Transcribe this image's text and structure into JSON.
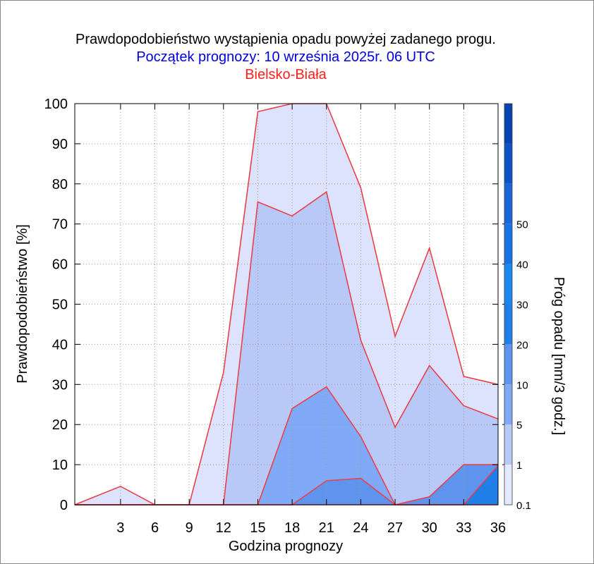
{
  "chart_data": {
    "type": "area",
    "title": "Prawdopodobieństwo wystąpienia opadu powyżej zadanego progu.",
    "subtitle": "Początek prognozy: 10 września 2025r. 06 UTC",
    "location": "Bielsko-Biała",
    "xlabel": "Godzina prognozy",
    "ylabel": "Prawdopodobieństwo [%]",
    "colorbar_label": "Próg opadu [mm/3 godz.]",
    "xlim": [
      -1,
      36
    ],
    "ylim": [
      0,
      100
    ],
    "x_ticks": [
      3,
      6,
      9,
      12,
      15,
      18,
      21,
      24,
      27,
      30,
      33,
      36
    ],
    "y_ticks": [
      0,
      10,
      20,
      30,
      40,
      50,
      60,
      70,
      80,
      90,
      100
    ],
    "grid": true,
    "x": [
      -1,
      3,
      6,
      9,
      12,
      15,
      18,
      21,
      24,
      27,
      30,
      33,
      36
    ],
    "series": [
      {
        "threshold": 0.1,
        "color": "#dde3fc",
        "values": [
          0,
          4.6,
          0,
          0,
          33,
          98,
          100,
          100,
          79,
          42,
          64,
          32,
          30
        ]
      },
      {
        "threshold": 1,
        "color": "#b9c9f7",
        "values": [
          0,
          0,
          0,
          0,
          0,
          75.5,
          72,
          78,
          41,
          19.3,
          34.7,
          24.7,
          21.4
        ]
      },
      {
        "threshold": 5,
        "color": "#80aaf7",
        "values": [
          0,
          0,
          0,
          0,
          0,
          0,
          24,
          29.4,
          17,
          0,
          0,
          0,
          0
        ]
      },
      {
        "threshold": 10,
        "color": "#5e93ee",
        "values": [
          0,
          0,
          0,
          0,
          0,
          0,
          0,
          6,
          6.6,
          0,
          2,
          10,
          10
        ]
      },
      {
        "threshold": 20,
        "color": "#1f7ee7",
        "values": [
          0,
          0,
          0,
          0,
          0,
          0,
          0,
          0,
          0,
          0,
          0,
          0,
          9.8
        ]
      }
    ],
    "colorbar": {
      "tick_labels": [
        "0.1",
        "1",
        "5",
        "10",
        "20",
        "30",
        "40",
        "50"
      ],
      "colors": [
        "#e3e9fe",
        "#b9c9f7",
        "#80aaf7",
        "#5e93ee",
        "#1f7ee7",
        "#1b88ef",
        "#1772e4",
        "#1a66d8",
        "#0d55c6",
        "#0645b0"
      ]
    },
    "outline_color": "#e8414b"
  }
}
